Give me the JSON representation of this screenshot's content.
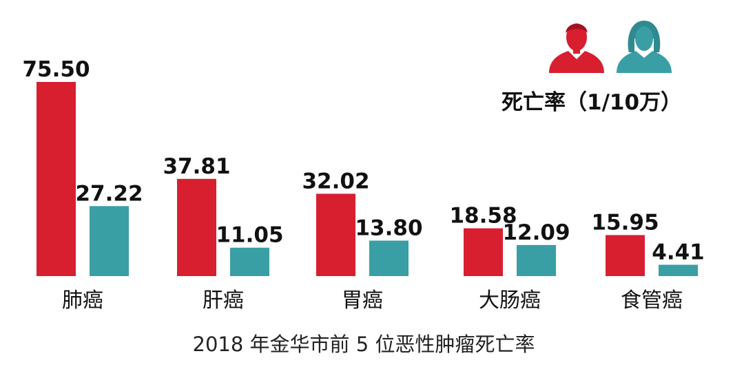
{
  "chart_data": {
    "type": "bar",
    "categories": [
      "肺癌",
      "肝癌",
      "胃癌",
      "大肠癌",
      "食管癌"
    ],
    "series": [
      {
        "values": [
          75.5,
          37.81,
          32.02,
          18.58,
          15.95
        ],
        "color": "#d71f30",
        "icon": "male-person-icon"
      },
      {
        "values": [
          27.22,
          11.05,
          13.8,
          12.09,
          4.41
        ],
        "color": "#3a9ea5",
        "icon": "female-person-icon"
      }
    ],
    "value_labels": [
      [
        "75.50",
        "37.81",
        "32.02",
        "18.58",
        "15.95"
      ],
      [
        "27.22",
        "11.05",
        "13.80",
        "12.09",
        "4.41"
      ]
    ],
    "legend_label": "死亡率（1/10万）",
    "caption": "2018 年金华市前 5 位恶性肿瘤死亡率",
    "ylim": [
      0,
      75.5
    ],
    "grid": false,
    "axes_visible": false,
    "legend_position": "top-right"
  }
}
